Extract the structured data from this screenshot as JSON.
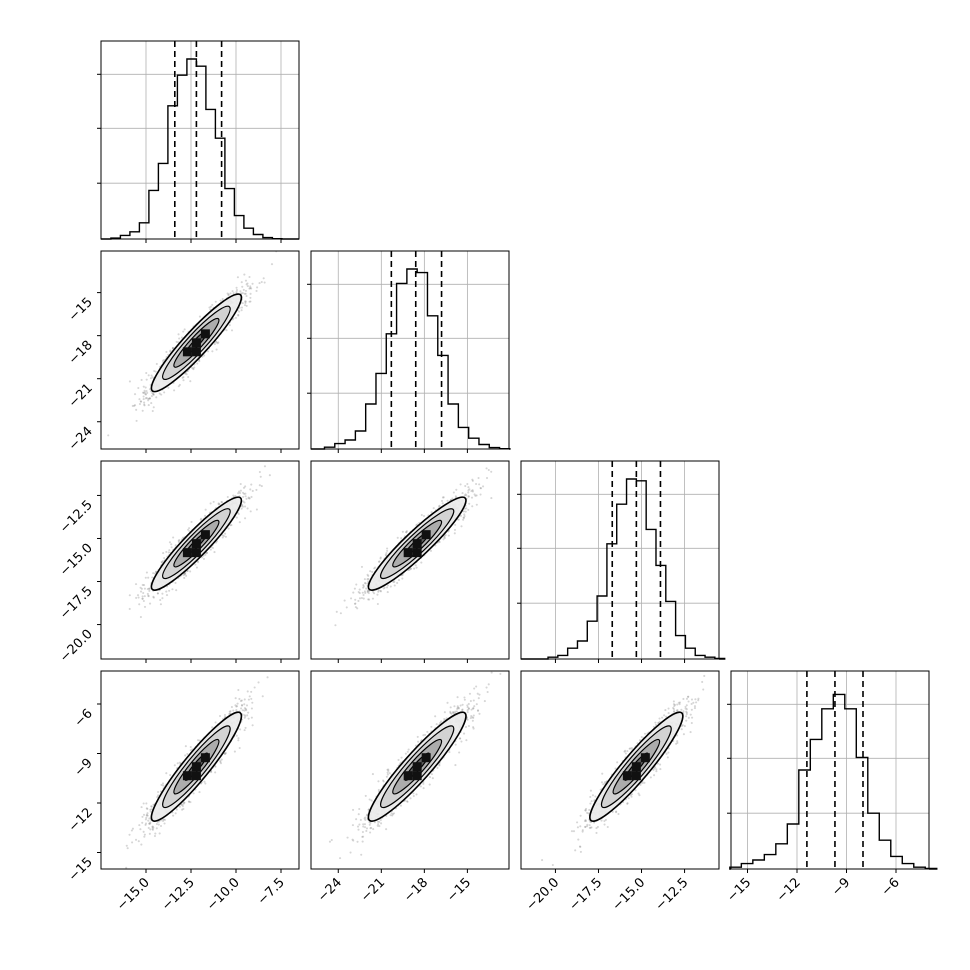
{
  "chart_data": {
    "type": "corner",
    "parameters": [
      {
        "name": "",
        "range": [
          -17.5,
          -6.5
        ],
        "ticks": [
          -15.0,
          -12.5,
          -10.0,
          -7.5
        ],
        "tick_labels": [
          "−15.0",
          "−12.5",
          "−10.0",
          "−7.5"
        ],
        "mean": -12.2,
        "sigma": 1.25,
        "quantiles": [
          -13.4,
          -12.2,
          -10.8
        ],
        "histogram": [
          0.005,
          0.02,
          0.04,
          0.09,
          0.27,
          0.42,
          0.74,
          0.91,
          1.0,
          0.96,
          0.72,
          0.56,
          0.28,
          0.13,
          0.06,
          0.025,
          0.008,
          0.002
        ]
      },
      {
        "name": "",
        "range": [
          -25.9,
          -12.1
        ],
        "ticks": [
          -24,
          -21,
          -18,
          -15
        ],
        "tick_labels": [
          "−24",
          "−21",
          "−18",
          "−15"
        ],
        "mean": -18.5,
        "sigma": 1.7,
        "quantiles": [
          -20.3,
          -18.6,
          -16.8
        ],
        "histogram": [
          0.01,
          0.03,
          0.05,
          0.1,
          0.25,
          0.42,
          0.64,
          0.92,
          1.0,
          0.98,
          0.74,
          0.52,
          0.25,
          0.12,
          0.06,
          0.025,
          0.008,
          0.002
        ]
      },
      {
        "name": "",
        "range": [
          -22.0,
          -10.5
        ],
        "ticks": [
          -20.0,
          -17.5,
          -15.0,
          -12.5
        ],
        "tick_labels": [
          "−20.0",
          "−17.5",
          "−15.0",
          "−12.5"
        ],
        "mean": -15.3,
        "sigma": 1.35,
        "quantiles": [
          -16.7,
          -15.3,
          -13.9
        ],
        "histogram": [
          0.01,
          0.02,
          0.06,
          0.1,
          0.21,
          0.35,
          0.64,
          0.86,
          1.0,
          0.99,
          0.72,
          0.52,
          0.32,
          0.13,
          0.06,
          0.02,
          0.01,
          0.003
        ]
      },
      {
        "name": "",
        "range": [
          -16.0,
          -4.0
        ],
        "ticks": [
          -15,
          -12,
          -9,
          -6
        ],
        "tick_labels": [
          "−15",
          "−12",
          "−9",
          "−6"
        ],
        "mean": -9.8,
        "sigma": 1.65,
        "quantiles": [
          -11.4,
          -9.7,
          -8.0
        ],
        "histogram": [
          0.01,
          0.03,
          0.05,
          0.08,
          0.14,
          0.25,
          0.55,
          0.72,
          0.89,
          0.97,
          0.89,
          0.62,
          0.31,
          0.16,
          0.07,
          0.03,
          0.01,
          0.003
        ]
      }
    ],
    "y_tick_params": [
      1,
      2,
      3
    ],
    "correlation": 0.93,
    "contour_levels": [
      "0.5-sigma",
      "1-sigma",
      "1.5-sigma",
      "2-sigma"
    ],
    "grid": true,
    "quantile_style": "dashed",
    "tick_rotation": -45
  },
  "colors": {
    "scatter": "#8a8a8a",
    "fill_low": "#ececec",
    "fill_mid": "#a8a8a8",
    "fill_high": "#5a5a5a",
    "cell_dark": "#111111",
    "contour": "#000000",
    "grid": "#b0b0b0"
  }
}
